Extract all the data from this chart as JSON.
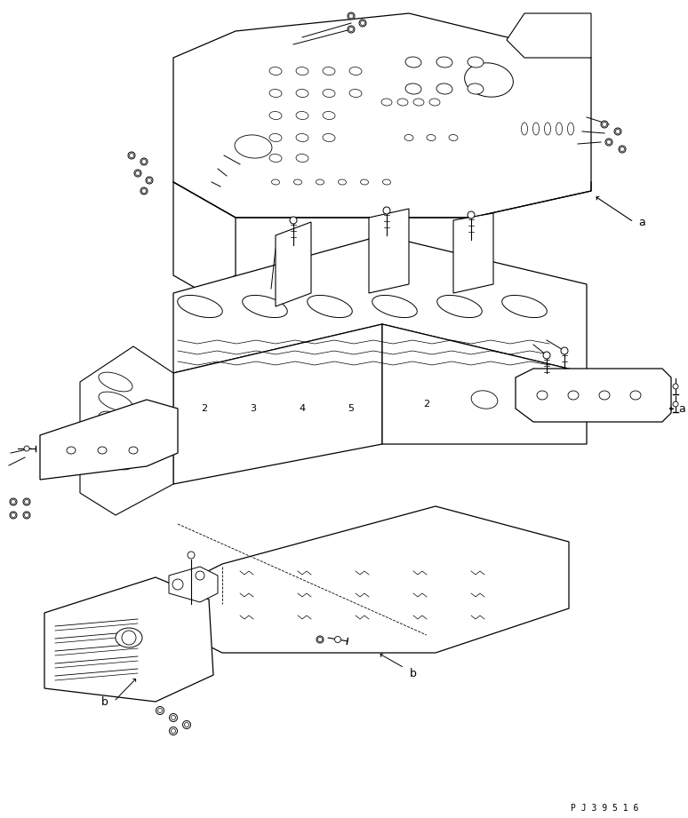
{
  "bg_color": "#ffffff",
  "line_color": "#000000",
  "fig_width": 7.74,
  "fig_height": 9.21,
  "dpi": 100,
  "part_number": "P J 3 9 5 1 6",
  "label_a1": "a",
  "label_a2": "a",
  "label_b1": "b",
  "label_b2": "b",
  "font_size_label": 9,
  "font_size_partnum": 7
}
